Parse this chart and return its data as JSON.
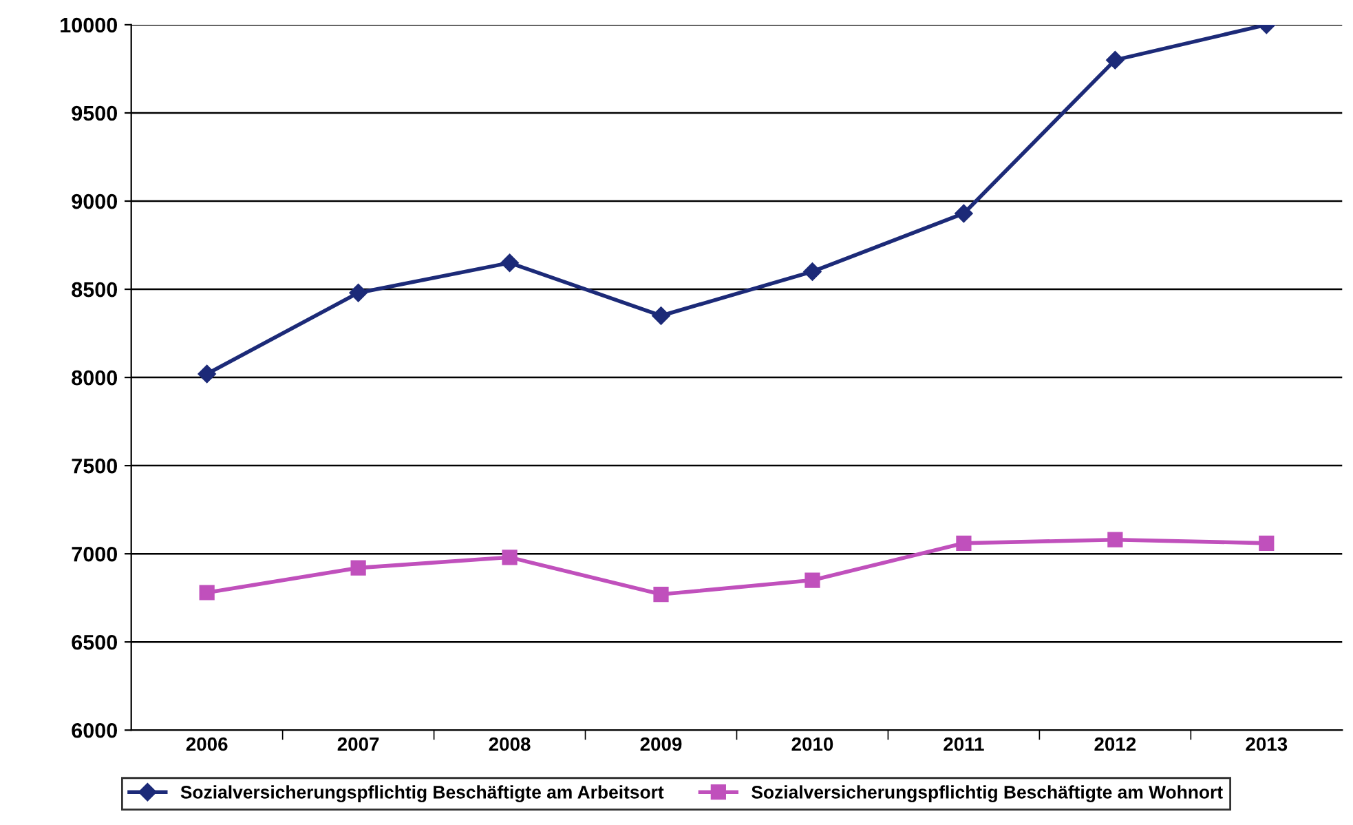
{
  "chart_data": {
    "type": "line",
    "categories": [
      "2006",
      "2007",
      "2008",
      "2009",
      "2010",
      "2011",
      "2012",
      "2013"
    ],
    "series": [
      {
        "name": "Sozialversicherungspflichtig Beschäftigte am Arbeitsort",
        "color": "#1c2a78",
        "marker": "diamond",
        "values": [
          8020,
          8480,
          8650,
          8350,
          8600,
          8930,
          9800,
          10000
        ]
      },
      {
        "name": "Sozialversicherungspflichtig Beschäftigte am Wohnort",
        "color": "#c050bc",
        "marker": "square",
        "values": [
          6780,
          6920,
          6980,
          6770,
          6850,
          7060,
          7080,
          7060
        ]
      }
    ],
    "ylim": [
      6000,
      10000
    ],
    "yticks": [
      6000,
      6500,
      7000,
      7500,
      8000,
      8500,
      9000,
      9500,
      10000
    ],
    "grid": "y",
    "legend": "bottom",
    "line_style": "solid"
  }
}
